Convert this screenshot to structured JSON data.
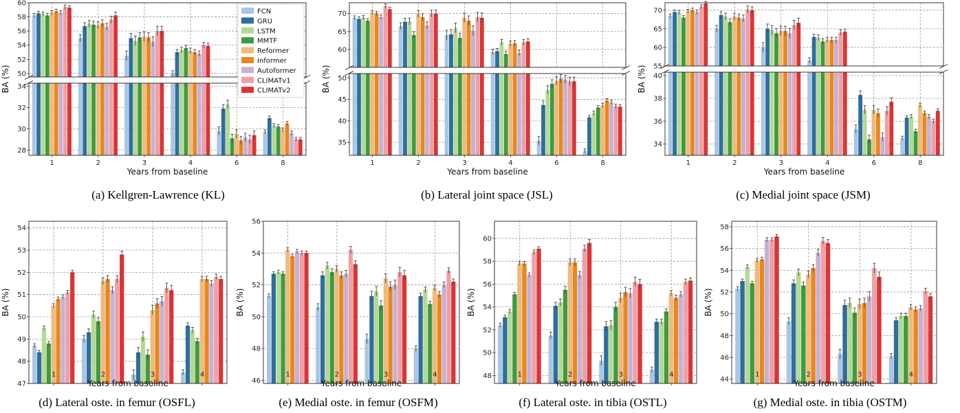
{
  "legend": [
    "FCN",
    "GRU",
    "LSTM",
    "MMTF",
    "Reformer",
    "Informer",
    "Autoformer",
    "CLIMATv1",
    "CLIMATv2"
  ],
  "colors": [
    "#aac6e3",
    "#2e6e9e",
    "#b4d995",
    "#3f9a40",
    "#efba7e",
    "#e9871f",
    "#c4b2d6",
    "#f0a0a5",
    "#d93535"
  ],
  "chart_data": [
    {
      "type": "bar",
      "split_axis": true,
      "caption": "(a) Kellgren-Lawrence (KL)",
      "xlabel": "Years from baseline",
      "ylabel": "BA (%)",
      "categories": [
        "1",
        "2",
        "3",
        "4",
        "6",
        "8"
      ],
      "upper": {
        "ylim": [
          49.5,
          60
        ],
        "ticks": [
          50,
          52,
          54,
          56,
          58,
          60
        ]
      },
      "lower": {
        "ylim": [
          27.5,
          34.3
        ],
        "ticks": [
          28,
          30,
          32,
          34
        ]
      },
      "series": [
        {
          "values": [
            58.2,
            55.0,
            52.5,
            50.0,
            29.8,
            29.7
          ]
        },
        {
          "values": [
            58.5,
            56.7,
            55.0,
            53.0,
            31.9,
            31.0
          ]
        },
        {
          "values": [
            58.4,
            57.0,
            54.6,
            53.3,
            32.3,
            30.3
          ]
        },
        {
          "values": [
            58.2,
            56.9,
            55.1,
            53.6,
            29.1,
            30.2
          ]
        },
        {
          "values": [
            58.6,
            56.8,
            55.2,
            53.2,
            29.5,
            29.9
          ]
        },
        {
          "values": [
            58.8,
            57.1,
            55.1,
            53.0,
            28.9,
            30.5
          ]
        },
        {
          "values": [
            58.6,
            56.6,
            54.5,
            52.8,
            29.2,
            29.6
          ]
        },
        {
          "values": [
            59.4,
            57.6,
            56.0,
            54.0,
            29.0,
            29.0
          ]
        },
        {
          "values": [
            59.3,
            58.2,
            56.0,
            53.9,
            29.4,
            29.0
          ]
        }
      ]
    },
    {
      "type": "bar",
      "split_axis": true,
      "caption": "(b) Lateral joint space (JSL)",
      "xlabel": "Years from baseline",
      "ylabel": "BA (%)",
      "categories": [
        "1",
        "2",
        "3",
        "4",
        "6",
        "8"
      ],
      "upper": {
        "ylim": [
          55,
          73
        ],
        "ticks": [
          60,
          65,
          70
        ]
      },
      "lower": {
        "ylim": [
          32,
          51
        ],
        "ticks": [
          35,
          40,
          45,
          50
        ]
      },
      "series": [
        {
          "values": [
            68.8,
            66.5,
            64.0,
            59.3,
            35.4,
            33.0
          ]
        },
        {
          "values": [
            68.5,
            67.7,
            64.2,
            59.5,
            43.7,
            40.8
          ]
        },
        {
          "values": [
            68.9,
            67.8,
            66.0,
            62.0,
            47.2,
            41.8
          ]
        },
        {
          "values": [
            68.0,
            64.0,
            63.2,
            58.7,
            48.6,
            43.1
          ]
        },
        {
          "values": [
            70.3,
            69.9,
            68.8,
            61.6,
            49.3,
            43.6
          ]
        },
        {
          "values": [
            70.0,
            69.0,
            68.0,
            61.7,
            49.8,
            44.7
          ]
        },
        {
          "values": [
            69.0,
            66.7,
            65.2,
            59.0,
            49.6,
            44.3
          ]
        },
        {
          "values": [
            72.1,
            70.0,
            69.0,
            62.0,
            49.2,
            43.4
          ]
        },
        {
          "values": [
            71.2,
            70.0,
            68.8,
            62.2,
            49.2,
            43.3
          ]
        }
      ]
    },
    {
      "type": "bar",
      "split_axis": true,
      "caption": "(c) Medial joint space (JSM)",
      "xlabel": "Years from baseline",
      "ylabel": "BA (%)",
      "categories": [
        "1",
        "2",
        "3",
        "4",
        "6",
        "8"
      ],
      "upper": {
        "ylim": [
          55,
          72
        ],
        "ticks": [
          55,
          60,
          65,
          70
        ]
      },
      "lower": {
        "ylim": [
          33,
          40.3
        ],
        "ticks": [
          34,
          36,
          38,
          40
        ]
      },
      "series": [
        {
          "values": [
            68.4,
            65.0,
            60.0,
            56.5,
            35.3,
            34.5
          ]
        },
        {
          "values": [
            69.5,
            68.7,
            65.0,
            62.8,
            38.3,
            36.3
          ]
        },
        {
          "values": [
            69.4,
            68.3,
            64.6,
            62.6,
            37.0,
            36.4
          ]
        },
        {
          "values": [
            68.0,
            66.8,
            63.8,
            61.6,
            34.4,
            35.1
          ]
        },
        {
          "values": [
            69.7,
            68.3,
            64.4,
            62.0,
            37.0,
            37.4
          ]
        },
        {
          "values": [
            70.0,
            68.0,
            64.4,
            62.0,
            36.7,
            36.7
          ]
        },
        {
          "values": [
            69.5,
            67.8,
            63.8,
            62.0,
            34.6,
            36.4
          ]
        },
        {
          "values": [
            70.9,
            70.2,
            66.0,
            64.0,
            36.9,
            36.0
          ]
        },
        {
          "values": [
            71.8,
            70.0,
            66.6,
            64.2,
            37.7,
            36.9
          ]
        }
      ]
    },
    {
      "type": "bar",
      "caption": "(d) Lateral oste. in femur (OSFL)",
      "xlabel": "Years from baseline",
      "ylabel": "BA (%)",
      "categories": [
        "1",
        "2",
        "3",
        "4"
      ],
      "ylim": [
        47,
        54.3
      ],
      "ticks": [
        47,
        48,
        49,
        50,
        51,
        52,
        53,
        54
      ],
      "series": [
        {
          "values": [
            48.7,
            49.0,
            47.4,
            47.5
          ]
        },
        {
          "values": [
            48.4,
            49.3,
            48.4,
            49.6
          ]
        },
        {
          "values": [
            49.5,
            50.1,
            49.1,
            49.4
          ]
        },
        {
          "values": [
            48.8,
            49.8,
            48.3,
            48.9
          ]
        },
        {
          "values": [
            50.5,
            51.6,
            50.3,
            51.7
          ]
        },
        {
          "values": [
            50.8,
            51.7,
            50.6,
            51.7
          ]
        },
        {
          "values": [
            50.9,
            51.2,
            50.7,
            51.5
          ]
        },
        {
          "values": [
            51.1,
            51.7,
            51.3,
            51.8
          ]
        },
        {
          "values": [
            52.0,
            52.8,
            51.2,
            51.7
          ]
        }
      ]
    },
    {
      "type": "bar",
      "caption": "(e) Medial oste. in femur (OSFM)",
      "xlabel": "Years from baseline",
      "ylabel": "BA (%)",
      "categories": [
        "1",
        "2",
        "3",
        "4"
      ],
      "ylim": [
        45.8,
        56
      ],
      "ticks": [
        46,
        48,
        50,
        52,
        54,
        56
      ],
      "series": [
        {
          "values": [
            51.3,
            50.6,
            48.6,
            48.0
          ]
        },
        {
          "values": [
            52.7,
            52.6,
            51.3,
            51.3
          ]
        },
        {
          "values": [
            52.8,
            53.2,
            51.6,
            51.7
          ]
        },
        {
          "values": [
            52.7,
            52.8,
            50.7,
            50.8
          ]
        },
        {
          "values": [
            54.2,
            53.0,
            52.4,
            51.8
          ]
        },
        {
          "values": [
            53.8,
            52.6,
            51.9,
            51.4
          ]
        },
        {
          "values": [
            54.1,
            52.7,
            52.0,
            52.0
          ]
        },
        {
          "values": [
            54.0,
            54.2,
            52.8,
            52.9
          ]
        },
        {
          "values": [
            54.0,
            53.3,
            52.6,
            52.2
          ]
        }
      ]
    },
    {
      "type": "bar",
      "caption": "(f) Lateral oste. in tibia (OSTL)",
      "xlabel": "Years from baseline",
      "ylabel": "BA (%)",
      "categories": [
        "1",
        "2",
        "3",
        "4"
      ],
      "ylim": [
        47.3,
        61.5
      ],
      "ticks": [
        48,
        50,
        52,
        54,
        56,
        58,
        60
      ],
      "series": [
        {
          "values": [
            52.4,
            51.5,
            49.3,
            48.5
          ]
        },
        {
          "values": [
            53.1,
            54.1,
            52.3,
            52.7
          ]
        },
        {
          "values": [
            53.6,
            54.4,
            52.4,
            52.7
          ]
        },
        {
          "values": [
            55.1,
            55.5,
            54.0,
            53.6
          ]
        },
        {
          "values": [
            57.8,
            57.9,
            54.8,
            55.2
          ]
        },
        {
          "values": [
            57.8,
            57.9,
            55.3,
            54.8
          ]
        },
        {
          "values": [
            56.8,
            56.8,
            55.2,
            55.1
          ]
        },
        {
          "values": [
            58.8,
            59.1,
            56.2,
            56.2
          ]
        },
        {
          "values": [
            59.1,
            59.6,
            56.0,
            56.3
          ]
        }
      ]
    },
    {
      "type": "bar",
      "caption": "(g) Medial oste. in tibia (OSTM)",
      "xlabel": "Years from baseline",
      "ylabel": "BA (%)",
      "categories": [
        "1",
        "2",
        "3",
        "4"
      ],
      "ylim": [
        43.6,
        58.5
      ],
      "ticks": [
        44,
        46,
        48,
        50,
        52,
        54,
        56,
        58
      ],
      "series": [
        {
          "values": [
            52.3,
            49.3,
            46.3,
            46.1
          ]
        },
        {
          "values": [
            53.0,
            52.8,
            50.8,
            49.4
          ]
        },
        {
          "values": [
            54.3,
            53.8,
            51.0,
            49.8
          ]
        },
        {
          "values": [
            52.8,
            52.6,
            50.1,
            49.8
          ]
        },
        {
          "values": [
            54.9,
            53.6,
            50.9,
            50.6
          ]
        },
        {
          "values": [
            55.0,
            54.2,
            51.0,
            50.4
          ]
        },
        {
          "values": [
            56.8,
            55.6,
            51.6,
            50.5
          ]
        },
        {
          "values": [
            56.8,
            56.7,
            54.2,
            52.1
          ]
        },
        {
          "values": [
            57.1,
            56.5,
            53.4,
            51.6
          ]
        }
      ]
    }
  ]
}
